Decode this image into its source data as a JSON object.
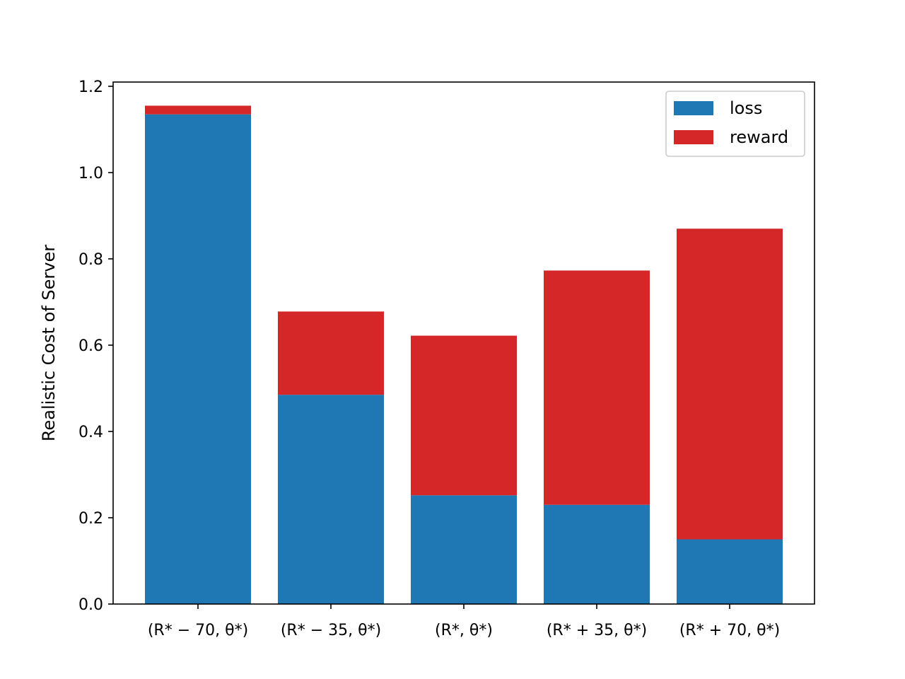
{
  "chart_data": {
    "type": "bar",
    "stacked": true,
    "categories": [
      "(R* − 70, θ*)",
      "(R* − 35, θ*)",
      "(R*, θ*)",
      "(R* + 35, θ*)",
      "(R* + 70, θ*)"
    ],
    "series": [
      {
        "name": "loss",
        "color": "#1f77b4",
        "values": [
          1.135,
          0.485,
          0.252,
          0.23,
          0.15
        ]
      },
      {
        "name": "reward",
        "color": "#d62728",
        "values": [
          0.02,
          0.193,
          0.37,
          0.543,
          0.72
        ]
      }
    ],
    "title": "",
    "xlabel": "",
    "ylabel": "Realistic Cost of Server",
    "ylim": [
      0,
      1.2
    ],
    "yticks": [
      "0.0",
      "0.2",
      "0.4",
      "0.6",
      "0.8",
      "1.0",
      "1.2"
    ],
    "legend_position": "upper right",
    "grid": false
  }
}
